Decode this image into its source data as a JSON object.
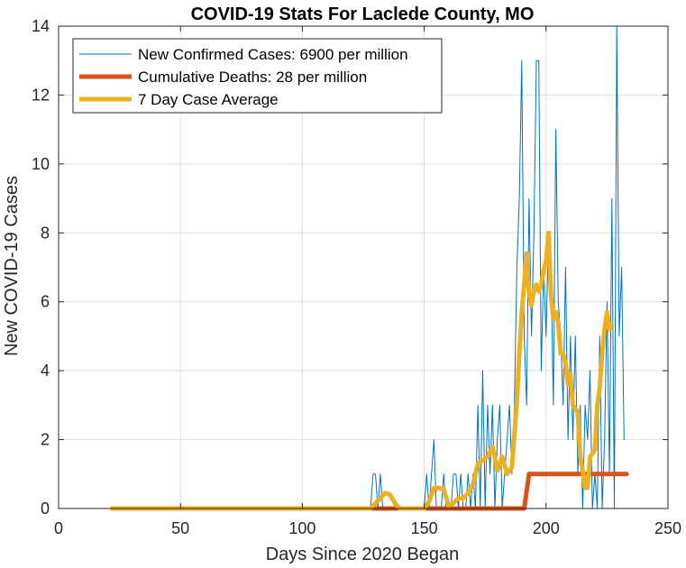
{
  "chart_data": {
    "type": "line",
    "title": "COVID-19 Stats For Laclede County, MO",
    "xlabel": "Days Since 2020 Began",
    "ylabel": "New COVID-19 Cases",
    "xlim": [
      0,
      250
    ],
    "ylim": [
      0,
      14
    ],
    "xticks": [
      0,
      50,
      100,
      150,
      200,
      250
    ],
    "yticks": [
      0,
      2,
      4,
      6,
      8,
      10,
      12,
      14
    ],
    "grid": true,
    "legend_position": "top-left",
    "series": [
      {
        "name": "New Confirmed Cases: 6900 per million",
        "color": "#0072BD",
        "line_width": "thin",
        "points": [
          [
            22,
            0
          ],
          [
            128,
            0
          ],
          [
            129,
            1
          ],
          [
            130,
            1
          ],
          [
            131,
            0
          ],
          [
            132,
            1
          ],
          [
            133,
            0
          ],
          [
            135,
            0
          ],
          [
            137,
            0
          ],
          [
            150,
            0
          ],
          [
            151,
            1
          ],
          [
            152,
            0
          ],
          [
            153,
            1
          ],
          [
            154,
            2
          ],
          [
            155,
            0
          ],
          [
            157,
            0
          ],
          [
            158,
            1
          ],
          [
            159,
            0
          ],
          [
            161,
            0
          ],
          [
            162,
            1
          ],
          [
            163,
            1
          ],
          [
            164,
            0
          ],
          [
            165,
            1
          ],
          [
            166,
            0
          ],
          [
            167,
            0
          ],
          [
            168,
            1
          ],
          [
            169,
            0
          ],
          [
            170,
            1
          ],
          [
            171,
            0
          ],
          [
            172,
            3
          ],
          [
            173,
            0
          ],
          [
            174,
            4
          ],
          [
            175,
            0
          ],
          [
            176,
            3
          ],
          [
            177,
            1
          ],
          [
            178,
            3
          ],
          [
            179,
            0
          ],
          [
            180,
            2
          ],
          [
            181,
            3
          ],
          [
            182,
            0
          ],
          [
            183,
            1
          ],
          [
            184,
            2
          ],
          [
            185,
            3
          ],
          [
            186,
            1
          ],
          [
            187,
            3
          ],
          [
            188,
            7
          ],
          [
            189,
            9
          ],
          [
            190,
            13
          ],
          [
            191,
            5
          ],
          [
            192,
            3
          ],
          [
            193,
            9
          ],
          [
            194,
            5
          ],
          [
            195,
            8
          ],
          [
            196,
            13
          ],
          [
            197,
            13
          ],
          [
            198,
            4
          ],
          [
            199,
            7
          ],
          [
            200,
            5
          ],
          [
            201,
            8
          ],
          [
            202,
            7
          ],
          [
            203,
            3
          ],
          [
            204,
            11
          ],
          [
            205,
            6
          ],
          [
            206,
            5
          ],
          [
            207,
            3
          ],
          [
            208,
            7
          ],
          [
            209,
            2
          ],
          [
            210,
            5
          ],
          [
            211,
            2
          ],
          [
            212,
            5
          ],
          [
            213,
            1
          ],
          [
            214,
            3
          ],
          [
            215,
            0
          ],
          [
            216,
            3
          ],
          [
            217,
            2
          ],
          [
            218,
            4
          ],
          [
            219,
            0
          ],
          [
            220,
            1
          ],
          [
            221,
            0
          ],
          [
            222,
            5
          ],
          [
            223,
            0
          ],
          [
            224,
            2
          ],
          [
            225,
            6
          ],
          [
            226,
            1
          ],
          [
            227,
            9
          ],
          [
            228,
            0
          ],
          [
            229,
            14
          ],
          [
            230,
            5
          ],
          [
            231,
            7
          ],
          [
            232,
            2
          ]
        ]
      },
      {
        "name": "Cumulative Deaths: 28 per million",
        "color": "#D95319",
        "line_width": "thick",
        "points": [
          [
            22,
            0
          ],
          [
            191,
            0
          ],
          [
            193,
            1
          ],
          [
            233,
            1
          ]
        ]
      },
      {
        "name": "7 Day Case Average",
        "color": "#EDB120",
        "line_width": "thick",
        "points": [
          [
            22,
            0
          ],
          [
            128,
            0
          ],
          [
            130,
            0.15
          ],
          [
            132,
            0.3
          ],
          [
            134,
            0.45
          ],
          [
            136,
            0.4
          ],
          [
            138,
            0.15
          ],
          [
            140,
            0
          ],
          [
            150,
            0
          ],
          [
            152,
            0.2
          ],
          [
            154,
            0.6
          ],
          [
            156,
            0.6
          ],
          [
            158,
            0.55
          ],
          [
            160,
            0.1
          ],
          [
            162,
            0.15
          ],
          [
            164,
            0.3
          ],
          [
            166,
            0.3
          ],
          [
            168,
            0.45
          ],
          [
            170,
            0.7
          ],
          [
            172,
            1.3
          ],
          [
            174,
            1.4
          ],
          [
            176,
            1.5
          ],
          [
            178,
            1.8
          ],
          [
            180,
            1.1
          ],
          [
            182,
            1.5
          ],
          [
            184,
            1.0
          ],
          [
            186,
            1.2
          ],
          [
            188,
            3.1
          ],
          [
            189,
            4.5
          ],
          [
            190,
            5.7
          ],
          [
            191,
            6.5
          ],
          [
            192,
            7.4
          ],
          [
            193,
            6.3
          ],
          [
            194,
            5.9
          ],
          [
            195,
            6.3
          ],
          [
            196,
            6.5
          ],
          [
            197,
            6.3
          ],
          [
            198,
            6.5
          ],
          [
            199,
            6.9
          ],
          [
            200,
            7.2
          ],
          [
            201,
            8.0
          ],
          [
            202,
            6.2
          ],
          [
            203,
            5.5
          ],
          [
            204,
            5.7
          ],
          [
            205,
            5.4
          ],
          [
            206,
            4.5
          ],
          [
            207,
            4.5
          ],
          [
            208,
            4.2
          ],
          [
            209,
            3.6
          ],
          [
            210,
            3.9
          ],
          [
            211,
            3.0
          ],
          [
            212,
            2.9
          ],
          [
            213,
            2.8
          ],
          [
            214,
            1.5
          ],
          [
            215,
            1.1
          ],
          [
            216,
            0.6
          ],
          [
            217,
            0.6
          ],
          [
            218,
            1.5
          ],
          [
            219,
            1.6
          ],
          [
            220,
            1.7
          ],
          [
            221,
            3.0
          ],
          [
            222,
            3.5
          ],
          [
            223,
            4.5
          ],
          [
            224,
            5.2
          ],
          [
            225,
            5.7
          ],
          [
            226,
            5.2
          ],
          [
            227,
            5.3
          ]
        ]
      }
    ]
  }
}
